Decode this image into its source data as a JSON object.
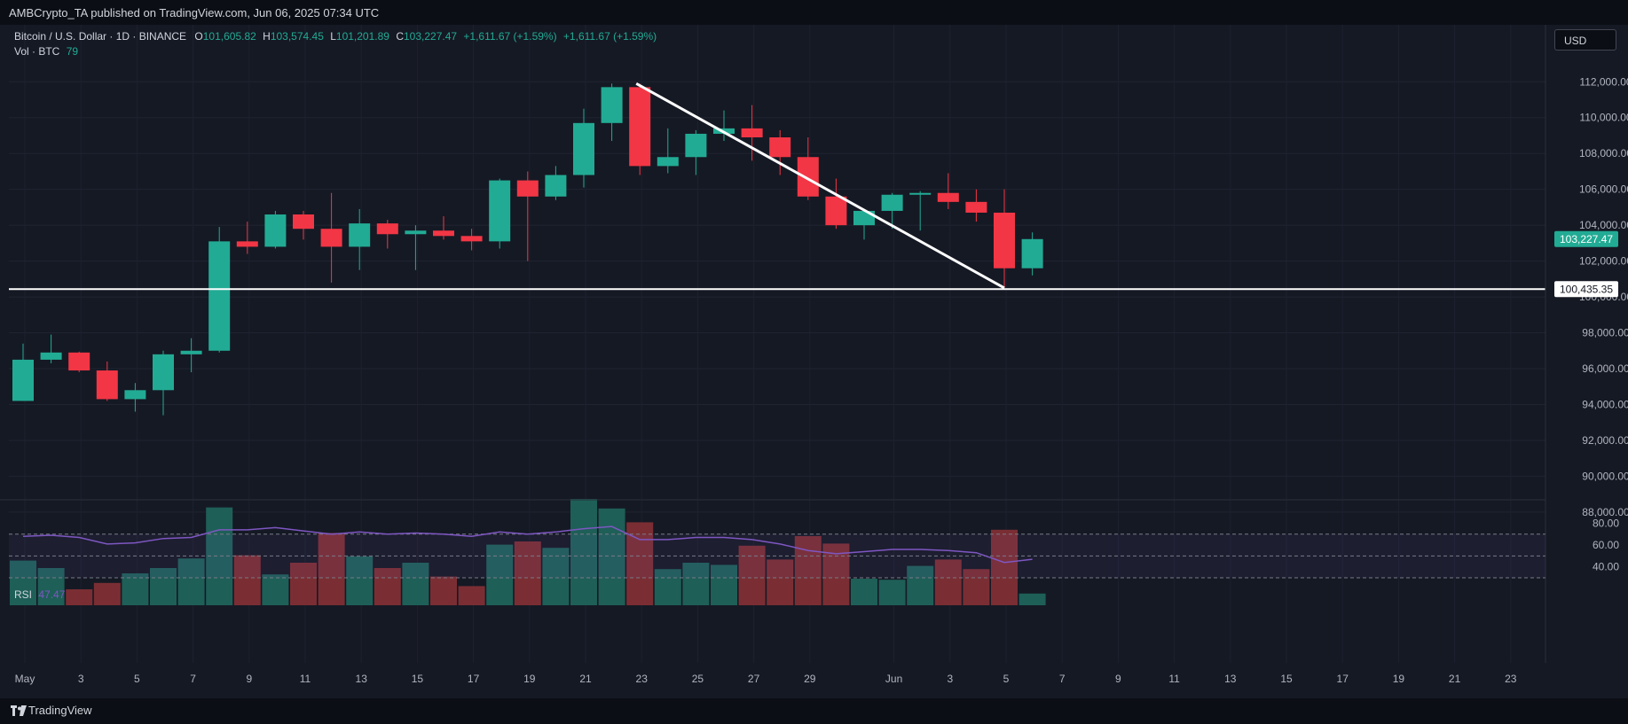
{
  "header": {
    "publisher_line": "AMBCrypto_TA published on TradingView.com, Jun 06, 2025 07:34 UTC"
  },
  "legend": {
    "symbol": "Bitcoin / U.S. Dollar · 1D · BINANCE",
    "open_label": "O",
    "open": "101,605.82",
    "high_label": "H",
    "high": "103,574.45",
    "low_label": "L",
    "low": "101,201.89",
    "close_label": "C",
    "close": "103,227.47",
    "change": "+1,611.67 (+1.59%)",
    "change2": "+1,611.67 (+1.59%)",
    "vol_label": "Vol · BTC",
    "vol_value": "79"
  },
  "rsi": {
    "label": "RSI",
    "value": "47.47"
  },
  "currency_button": "USD",
  "footer": {
    "brand": "TradingView"
  },
  "colors": {
    "up": "#22ab94",
    "down": "#f23645",
    "up_vol": "#1e5f58",
    "down_vol": "#7a2e33",
    "rsi": "#7e57c2",
    "background": "#151924"
  },
  "chart_data": {
    "type": "candlestick",
    "price_axis_ticks": [
      "112,000.00",
      "110,000.00",
      "108,000.00",
      "106,000.00",
      "104,000.00",
      "102,000.00",
      "100,000.00",
      "98,000.00",
      "96,000.00",
      "94,000.00",
      "92,000.00",
      "90,000.00",
      "88,000.00"
    ],
    "price_ticks_values": [
      112000,
      110000,
      108000,
      106000,
      104000,
      102000,
      100000,
      98000,
      96000,
      94000,
      92000,
      90000,
      88000
    ],
    "ylim": [
      87500,
      113200
    ],
    "rsi_axis_ticks": [
      "80.00",
      "60.00",
      "40.00"
    ],
    "rsi_ticks_values": [
      80,
      60,
      40
    ],
    "rsi_ylim": [
      30,
      82
    ],
    "rsi_bands": [
      70,
      50,
      30
    ],
    "x_tick_labels": [
      "May",
      "3",
      "5",
      "7",
      "9",
      "11",
      "13",
      "15",
      "17",
      "19",
      "21",
      "23",
      "25",
      "27",
      "29",
      "Jun",
      "3",
      "5",
      "7",
      "9",
      "11",
      "13",
      "15",
      "17",
      "19",
      "21",
      "23"
    ],
    "x_tick_index": [
      0,
      2,
      4,
      6,
      8,
      10,
      12,
      14,
      16,
      18,
      20,
      22,
      24,
      26,
      28,
      31,
      33,
      35,
      37,
      39,
      41,
      43,
      45,
      47,
      49,
      51,
      53
    ],
    "candles": [
      {
        "date": "May 1",
        "o": 94200,
        "h": 97400,
        "l": 94200,
        "c": 96500
      },
      {
        "date": "May 2",
        "o": 96500,
        "h": 97900,
        "l": 96300,
        "c": 96900
      },
      {
        "date": "May 3",
        "o": 96900,
        "h": 96950,
        "l": 95800,
        "c": 95900
      },
      {
        "date": "May 4",
        "o": 95900,
        "h": 96400,
        "l": 94200,
        "c": 94300
      },
      {
        "date": "May 5",
        "o": 94300,
        "h": 95200,
        "l": 93600,
        "c": 94800
      },
      {
        "date": "May 6",
        "o": 94800,
        "h": 97000,
        "l": 93400,
        "c": 96800
      },
      {
        "date": "May 7",
        "o": 96800,
        "h": 97700,
        "l": 95800,
        "c": 97000
      },
      {
        "date": "May 8",
        "o": 97000,
        "h": 103900,
        "l": 96900,
        "c": 103100
      },
      {
        "date": "May 9",
        "o": 103100,
        "h": 104200,
        "l": 102400,
        "c": 102800
      },
      {
        "date": "May 10",
        "o": 102800,
        "h": 104800,
        "l": 102700,
        "c": 104600
      },
      {
        "date": "May 11",
        "o": 104600,
        "h": 104800,
        "l": 103200,
        "c": 103800
      },
      {
        "date": "May 12",
        "o": 103800,
        "h": 105800,
        "l": 100800,
        "c": 102800
      },
      {
        "date": "May 13",
        "o": 102800,
        "h": 104900,
        "l": 101500,
        "c": 104100
      },
      {
        "date": "May 14",
        "o": 104100,
        "h": 104300,
        "l": 102700,
        "c": 103500
      },
      {
        "date": "May 15",
        "o": 103500,
        "h": 104000,
        "l": 101500,
        "c": 103700
      },
      {
        "date": "May 16",
        "o": 103700,
        "h": 104500,
        "l": 103200,
        "c": 103400
      },
      {
        "date": "May 17",
        "o": 103400,
        "h": 103800,
        "l": 102600,
        "c": 103100
      },
      {
        "date": "May 18",
        "o": 103100,
        "h": 106600,
        "l": 102700,
        "c": 106500
      },
      {
        "date": "May 19",
        "o": 106500,
        "h": 107000,
        "l": 102000,
        "c": 105600
      },
      {
        "date": "May 20",
        "o": 105600,
        "h": 107300,
        "l": 105400,
        "c": 106800
      },
      {
        "date": "May 21",
        "o": 106800,
        "h": 110500,
        "l": 106100,
        "c": 109700
      },
      {
        "date": "May 22",
        "o": 109700,
        "h": 111900,
        "l": 108700,
        "c": 111700
      },
      {
        "date": "May 23",
        "o": 111700,
        "h": 111900,
        "l": 106800,
        "c": 107300
      },
      {
        "date": "May 24",
        "o": 107300,
        "h": 109400,
        "l": 106900,
        "c": 107800
      },
      {
        "date": "May 25",
        "o": 107800,
        "h": 109300,
        "l": 106800,
        "c": 109100
      },
      {
        "date": "May 26",
        "o": 109100,
        "h": 110400,
        "l": 108700,
        "c": 109400
      },
      {
        "date": "May 27",
        "o": 109400,
        "h": 110700,
        "l": 107600,
        "c": 108900
      },
      {
        "date": "May 28",
        "o": 108900,
        "h": 109300,
        "l": 106800,
        "c": 107800
      },
      {
        "date": "May 29",
        "o": 107800,
        "h": 108900,
        "l": 105400,
        "c": 105600
      },
      {
        "date": "May 30",
        "o": 105600,
        "h": 106600,
        "l": 103800,
        "c": 104000
      },
      {
        "date": "May 31",
        "o": 104000,
        "h": 104900,
        "l": 103200,
        "c": 104800
      },
      {
        "date": "Jun 1",
        "o": 104800,
        "h": 105800,
        "l": 103800,
        "c": 105700
      },
      {
        "date": "Jun 2",
        "o": 105700,
        "h": 105900,
        "l": 103700,
        "c": 105800
      },
      {
        "date": "Jun 3",
        "o": 105800,
        "h": 106900,
        "l": 104900,
        "c": 105300
      },
      {
        "date": "Jun 4",
        "o": 105300,
        "h": 106000,
        "l": 104200,
        "c": 104700
      },
      {
        "date": "Jun 5",
        "o": 104700,
        "h": 106000,
        "l": 100500,
        "c": 101600
      },
      {
        "date": "Jun 6",
        "o": 101600,
        "h": 103600,
        "l": 101200,
        "c": 103227
      }
    ],
    "volume_relative": [
      0.42,
      0.35,
      0.15,
      0.21,
      0.3,
      0.35,
      0.44,
      0.92,
      0.47,
      0.29,
      0.4,
      0.68,
      0.46,
      0.35,
      0.4,
      0.27,
      0.18,
      0.57,
      0.6,
      0.54,
      1.0,
      0.91,
      0.78,
      0.34,
      0.4,
      0.38,
      0.56,
      0.43,
      0.65,
      0.58,
      0.25,
      0.24,
      0.37,
      0.43,
      0.34,
      0.71,
      0.11
    ],
    "rsi_values": [
      68,
      69,
      67,
      61,
      62,
      66,
      67,
      74,
      74,
      76,
      73,
      70,
      72,
      70,
      71,
      70,
      68,
      72,
      70,
      72,
      75,
      77,
      65,
      65,
      67,
      67,
      65,
      61,
      55,
      52,
      54,
      56,
      56,
      55,
      53,
      44,
      47
    ],
    "current_price_label": "103,227.47",
    "current_price_value": 103227.47,
    "horizontal_line_label": "100,435.35",
    "horizontal_line_value": 100435.35,
    "trendline": {
      "from_date": "May 23",
      "from_price": 111900,
      "to_date": "Jun 5",
      "to_price": 100500
    }
  }
}
